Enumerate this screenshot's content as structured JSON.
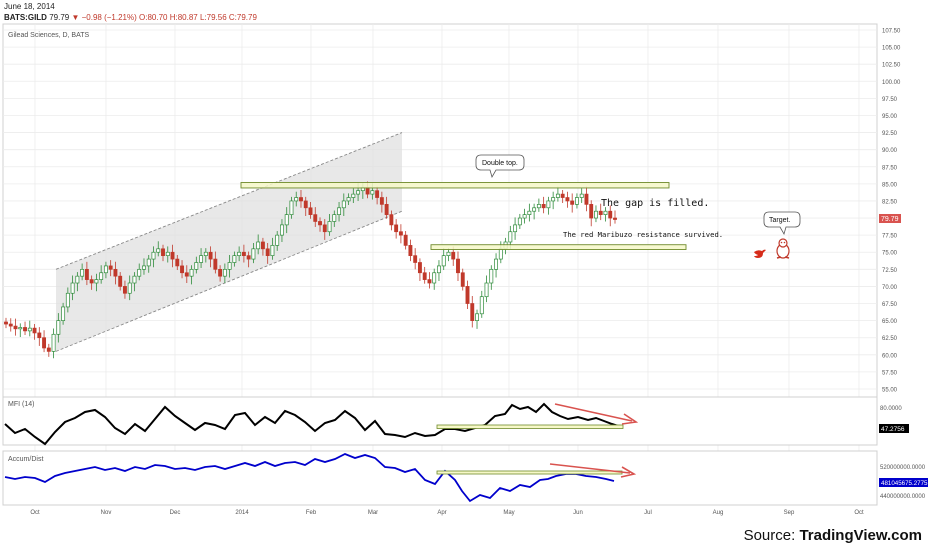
{
  "header": {
    "date": "June 18, 2014",
    "symbol": "BATS:GILD",
    "last": "79.79",
    "change": "▼ −0.98 (−1.21%)",
    "open": "O:80.70",
    "high": "H:80.87",
    "low": "L:79.56",
    "close": "C:79.79"
  },
  "source": {
    "prefix": "Source: ",
    "name": "TradingView.com"
  },
  "chart_data": [
    {
      "type": "candlestick",
      "title": "Gilead Sciences, D, BATS",
      "ylim": [
        55,
        107.5
      ],
      "y_ticks": [
        "107.50",
        "105.00",
        "102.50",
        "100.00",
        "97.50",
        "95.00",
        "92.50",
        "90.00",
        "87.50",
        "85.00",
        "82.50",
        "80.00",
        "77.50",
        "75.00",
        "72.50",
        "70.00",
        "67.50",
        "65.00",
        "62.50",
        "60.00",
        "57.50",
        "55.00"
      ],
      "x_ticks": [
        "Oct",
        "Nov",
        "Dec",
        "2014",
        "Feb",
        "Mar",
        "Apr",
        "May",
        "Jun",
        "Jul",
        "Aug",
        "Sep",
        "Oct"
      ],
      "last_price_label": "79.79",
      "close_path": [
        64.5,
        64.2,
        63.8,
        64,
        63.5,
        63.9,
        63.2,
        62.5,
        61,
        60.5,
        63,
        65,
        67,
        69,
        70.5,
        71.5,
        72.5,
        71,
        70.5,
        71,
        72,
        73,
        72.5,
        71.5,
        70,
        69,
        70.5,
        71.5,
        72.5,
        73,
        74,
        75,
        75.5,
        74.5,
        75,
        74,
        73,
        72,
        71.5,
        72.5,
        73.5,
        74.5,
        75,
        74,
        72.5,
        71.5,
        72.5,
        73.5,
        74.5,
        75,
        74.5,
        74,
        75.5,
        76.5,
        75.5,
        74.5,
        76,
        77.5,
        79,
        80.5,
        82.5,
        83,
        82.5,
        81.5,
        80.5,
        79.5,
        79,
        78,
        79.5,
        80.5,
        81.5,
        82.5,
        83,
        83.5,
        84,
        84.5,
        83.5,
        84,
        83,
        82,
        80.5,
        79,
        78,
        77.5,
        76,
        74.5,
        73.5,
        72,
        71,
        70.5,
        72,
        73,
        74.5,
        75,
        74,
        72,
        70,
        67.5,
        65,
        66,
        68.5,
        70.5,
        72.5,
        74,
        75.5,
        76.5,
        78,
        79,
        80,
        80.5,
        81,
        81.5,
        82,
        81.5,
        82.5,
        83,
        83.5,
        83,
        82.5,
        82,
        83,
        83.5,
        82,
        80,
        81,
        80.5,
        81,
        80,
        79.79
      ],
      "annotations": [
        {
          "id": "double-top",
          "text": "Double top."
        },
        {
          "id": "gap-filled",
          "text": "The gap is filled."
        },
        {
          "id": "resistance",
          "text": "The red Maribuzo resistance  survived."
        },
        {
          "id": "target",
          "text": "Target."
        }
      ],
      "resistance_zones": [
        {
          "y_low": 84.4,
          "y_high": 85.2
        },
        {
          "y_low": 75.4,
          "y_high": 76.1
        }
      ],
      "channel": {
        "top": [
          72.5,
          92.5
        ],
        "bottom": [
          60.5,
          81
        ]
      }
    },
    {
      "type": "line",
      "title": "MFI (14)",
      "y_ticks": [
        "80.0000"
      ],
      "last_value_label": "47.2756",
      "series": [
        {
          "color": "#000000"
        }
      ]
    },
    {
      "type": "line",
      "title": "Accum/Dist",
      "y_ticks": [
        "520000000.0000",
        "480000000.0000",
        "440000000.0000"
      ],
      "last_value_label": "481045675.2775",
      "series": [
        {
          "color": "#0000cc"
        }
      ]
    }
  ]
}
